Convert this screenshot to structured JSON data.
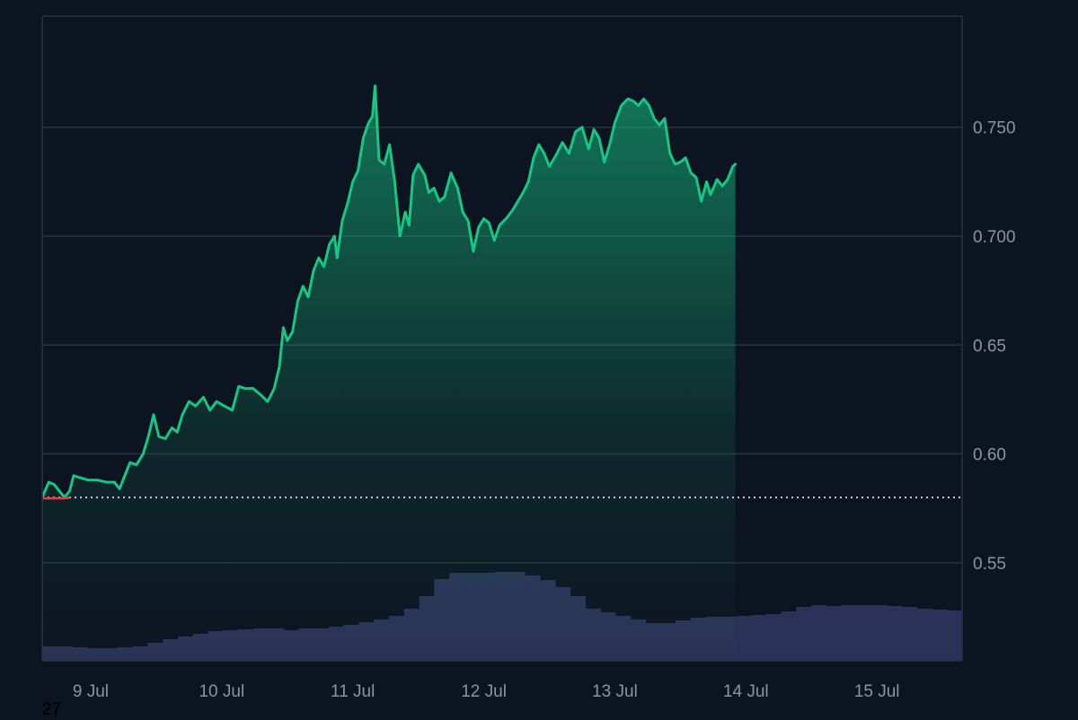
{
  "chart_data": {
    "type": "area",
    "title": "",
    "xlabel": "",
    "ylabel": "",
    "x_tick_labels": [
      "9 Jul",
      "10 Jul",
      "11 Jul",
      "12 Jul",
      "13 Jul",
      "14 Jul",
      "15 Jul"
    ],
    "y_tick_labels": [
      "0.750",
      "0.700",
      "0.65",
      "0.60",
      "0.55"
    ],
    "y_ticks": [
      0.75,
      0.7,
      0.65,
      0.6,
      0.55
    ],
    "ylim": [
      0.505,
      0.801
    ],
    "xlim_days": [
      8.63,
      15.65
    ],
    "baseline": 0.58,
    "grid": true,
    "axis_position": "right",
    "colors": {
      "background": "#0d1421",
      "line_up": "#16c784",
      "line_down": "#ea3943",
      "volume": "#2a3357",
      "grid": "#2a3140",
      "baseline": "#c8ccd4"
    },
    "series": [
      {
        "kind": "price",
        "points": [
          [
            8.63,
            0.58
          ],
          [
            8.68,
            0.587
          ],
          [
            8.72,
            0.586
          ],
          [
            8.76,
            0.583
          ],
          [
            8.8,
            0.58
          ],
          [
            8.84,
            0.583
          ],
          [
            8.87,
            0.59
          ],
          [
            8.92,
            0.589
          ],
          [
            8.98,
            0.588
          ],
          [
            9.05,
            0.588
          ],
          [
            9.12,
            0.587
          ],
          [
            9.18,
            0.587
          ],
          [
            9.22,
            0.584
          ],
          [
            9.26,
            0.59
          ],
          [
            9.3,
            0.596
          ],
          [
            9.35,
            0.595
          ],
          [
            9.4,
            0.6
          ],
          [
            9.44,
            0.608
          ],
          [
            9.48,
            0.618
          ],
          [
            9.52,
            0.608
          ],
          [
            9.57,
            0.607
          ],
          [
            9.62,
            0.612
          ],
          [
            9.66,
            0.61
          ],
          [
            9.7,
            0.618
          ],
          [
            9.75,
            0.624
          ],
          [
            9.8,
            0.622
          ],
          [
            9.86,
            0.626
          ],
          [
            9.91,
            0.62
          ],
          [
            9.96,
            0.624
          ],
          [
            10.02,
            0.622
          ],
          [
            10.08,
            0.62
          ],
          [
            10.13,
            0.631
          ],
          [
            10.18,
            0.63
          ],
          [
            10.24,
            0.63
          ],
          [
            10.3,
            0.627
          ],
          [
            10.35,
            0.624
          ],
          [
            10.4,
            0.63
          ],
          [
            10.44,
            0.64
          ],
          [
            10.47,
            0.658
          ],
          [
            10.5,
            0.652
          ],
          [
            10.54,
            0.656
          ],
          [
            10.58,
            0.67
          ],
          [
            10.62,
            0.677
          ],
          [
            10.66,
            0.672
          ],
          [
            10.7,
            0.684
          ],
          [
            10.74,
            0.69
          ],
          [
            10.78,
            0.686
          ],
          [
            10.82,
            0.696
          ],
          [
            10.86,
            0.7
          ],
          [
            10.88,
            0.69
          ],
          [
            10.92,
            0.707
          ],
          [
            10.96,
            0.715
          ],
          [
            11.0,
            0.725
          ],
          [
            11.04,
            0.73
          ],
          [
            11.08,
            0.745
          ],
          [
            11.12,
            0.752
          ],
          [
            11.15,
            0.755
          ],
          [
            11.17,
            0.769
          ],
          [
            11.2,
            0.735
          ],
          [
            11.24,
            0.733
          ],
          [
            11.28,
            0.742
          ],
          [
            11.32,
            0.725
          ],
          [
            11.36,
            0.7
          ],
          [
            11.4,
            0.711
          ],
          [
            11.43,
            0.705
          ],
          [
            11.46,
            0.728
          ],
          [
            11.5,
            0.733
          ],
          [
            11.55,
            0.728
          ],
          [
            11.58,
            0.72
          ],
          [
            11.62,
            0.722
          ],
          [
            11.66,
            0.716
          ],
          [
            11.7,
            0.718
          ],
          [
            11.75,
            0.729
          ],
          [
            11.8,
            0.722
          ],
          [
            11.84,
            0.711
          ],
          [
            11.88,
            0.707
          ],
          [
            11.92,
            0.693
          ],
          [
            11.96,
            0.704
          ],
          [
            12.0,
            0.708
          ],
          [
            12.04,
            0.706
          ],
          [
            12.08,
            0.698
          ],
          [
            12.12,
            0.705
          ],
          [
            12.17,
            0.708
          ],
          [
            12.22,
            0.712
          ],
          [
            12.26,
            0.716
          ],
          [
            12.3,
            0.72
          ],
          [
            12.34,
            0.725
          ],
          [
            12.38,
            0.736
          ],
          [
            12.42,
            0.742
          ],
          [
            12.46,
            0.738
          ],
          [
            12.5,
            0.732
          ],
          [
            12.55,
            0.737
          ],
          [
            12.6,
            0.743
          ],
          [
            12.65,
            0.738
          ],
          [
            12.7,
            0.748
          ],
          [
            12.75,
            0.75
          ],
          [
            12.8,
            0.74
          ],
          [
            12.84,
            0.749
          ],
          [
            12.88,
            0.745
          ],
          [
            12.92,
            0.734
          ],
          [
            12.96,
            0.742
          ],
          [
            13.0,
            0.752
          ],
          [
            13.05,
            0.76
          ],
          [
            13.1,
            0.763
          ],
          [
            13.14,
            0.762
          ],
          [
            13.18,
            0.76
          ],
          [
            13.22,
            0.763
          ],
          [
            13.26,
            0.76
          ],
          [
            13.3,
            0.754
          ],
          [
            13.34,
            0.751
          ],
          [
            13.38,
            0.754
          ],
          [
            13.42,
            0.738
          ],
          [
            13.46,
            0.733
          ],
          [
            13.5,
            0.734
          ],
          [
            13.54,
            0.736
          ],
          [
            13.58,
            0.729
          ],
          [
            13.62,
            0.727
          ],
          [
            13.66,
            0.716
          ],
          [
            13.7,
            0.725
          ],
          [
            13.73,
            0.719
          ],
          [
            13.78,
            0.726
          ],
          [
            13.82,
            0.723
          ],
          [
            13.86,
            0.726
          ],
          [
            13.9,
            0.732
          ],
          [
            13.92,
            0.733
          ]
        ]
      },
      {
        "kind": "volume",
        "relative_scale": [
          0.16,
          0.16,
          0.15,
          0.14,
          0.14,
          0.15,
          0.16,
          0.2,
          0.24,
          0.27,
          0.3,
          0.33,
          0.34,
          0.35,
          0.36,
          0.36,
          0.34,
          0.36,
          0.36,
          0.38,
          0.4,
          0.43,
          0.46,
          0.5,
          0.58,
          0.72,
          0.91,
          0.98,
          0.98,
          0.98,
          0.99,
          0.99,
          0.95,
          0.9,
          0.82,
          0.72,
          0.58,
          0.54,
          0.5,
          0.46,
          0.42,
          0.42,
          0.45,
          0.48,
          0.49,
          0.49,
          0.5,
          0.51,
          0.52,
          0.55,
          0.6,
          0.62,
          0.61,
          0.62,
          0.62,
          0.62,
          0.61,
          0.6,
          0.58,
          0.57,
          0.56
        ]
      }
    ]
  },
  "stray_label": "27"
}
